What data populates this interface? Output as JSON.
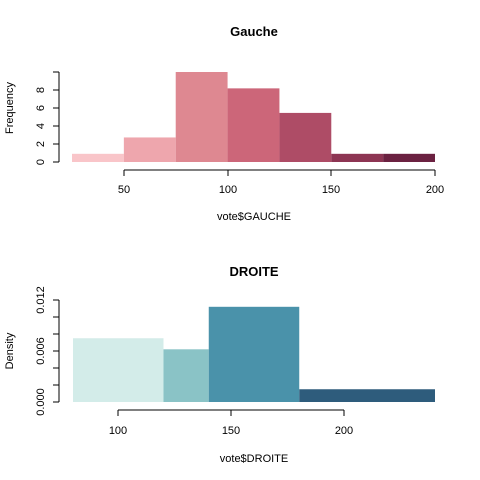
{
  "chart_data": [
    {
      "type": "bar",
      "title": "Gauche",
      "xlabel": "vote$GAUCHE",
      "ylabel": "Frequency",
      "bins": [
        [
          25,
          50
        ],
        [
          50,
          75
        ],
        [
          75,
          100
        ],
        [
          100,
          125
        ],
        [
          125,
          150
        ],
        [
          150,
          175
        ],
        [
          175,
          200
        ]
      ],
      "values": [
        1,
        3,
        11,
        9,
        6,
        1,
        1
      ],
      "colors": [
        "#f9c5c9",
        "#eea6ad",
        "#de8891",
        "#cc6679",
        "#ae4c66",
        "#8d3553",
        "#6b2141"
      ],
      "xlim": [
        25,
        200
      ],
      "ylim": [
        0,
        11
      ],
      "xticks": [
        "50",
        "100",
        "150",
        "200"
      ],
      "yticks": [
        "0",
        "2",
        "4",
        "6",
        "8"
      ]
    },
    {
      "type": "bar",
      "title": "DROITE",
      "xlabel": "vote$DROITE",
      "ylabel": "Density",
      "bins": [
        [
          80,
          120
        ],
        [
          120,
          140
        ],
        [
          140,
          180
        ],
        [
          180,
          240
        ]
      ],
      "values": [
        0.0075,
        0.0062,
        0.0112,
        0.0015
      ],
      "colors": [
        "#d3ece9",
        "#8ac3c6",
        "#4a92aa",
        "#2e5c7c"
      ],
      "xlim": [
        80,
        240
      ],
      "ylim": [
        0,
        0.012
      ],
      "xticks": [
        "100",
        "150",
        "200"
      ],
      "yticks": [
        "0.000",
        "0.006",
        "0.012"
      ]
    }
  ]
}
